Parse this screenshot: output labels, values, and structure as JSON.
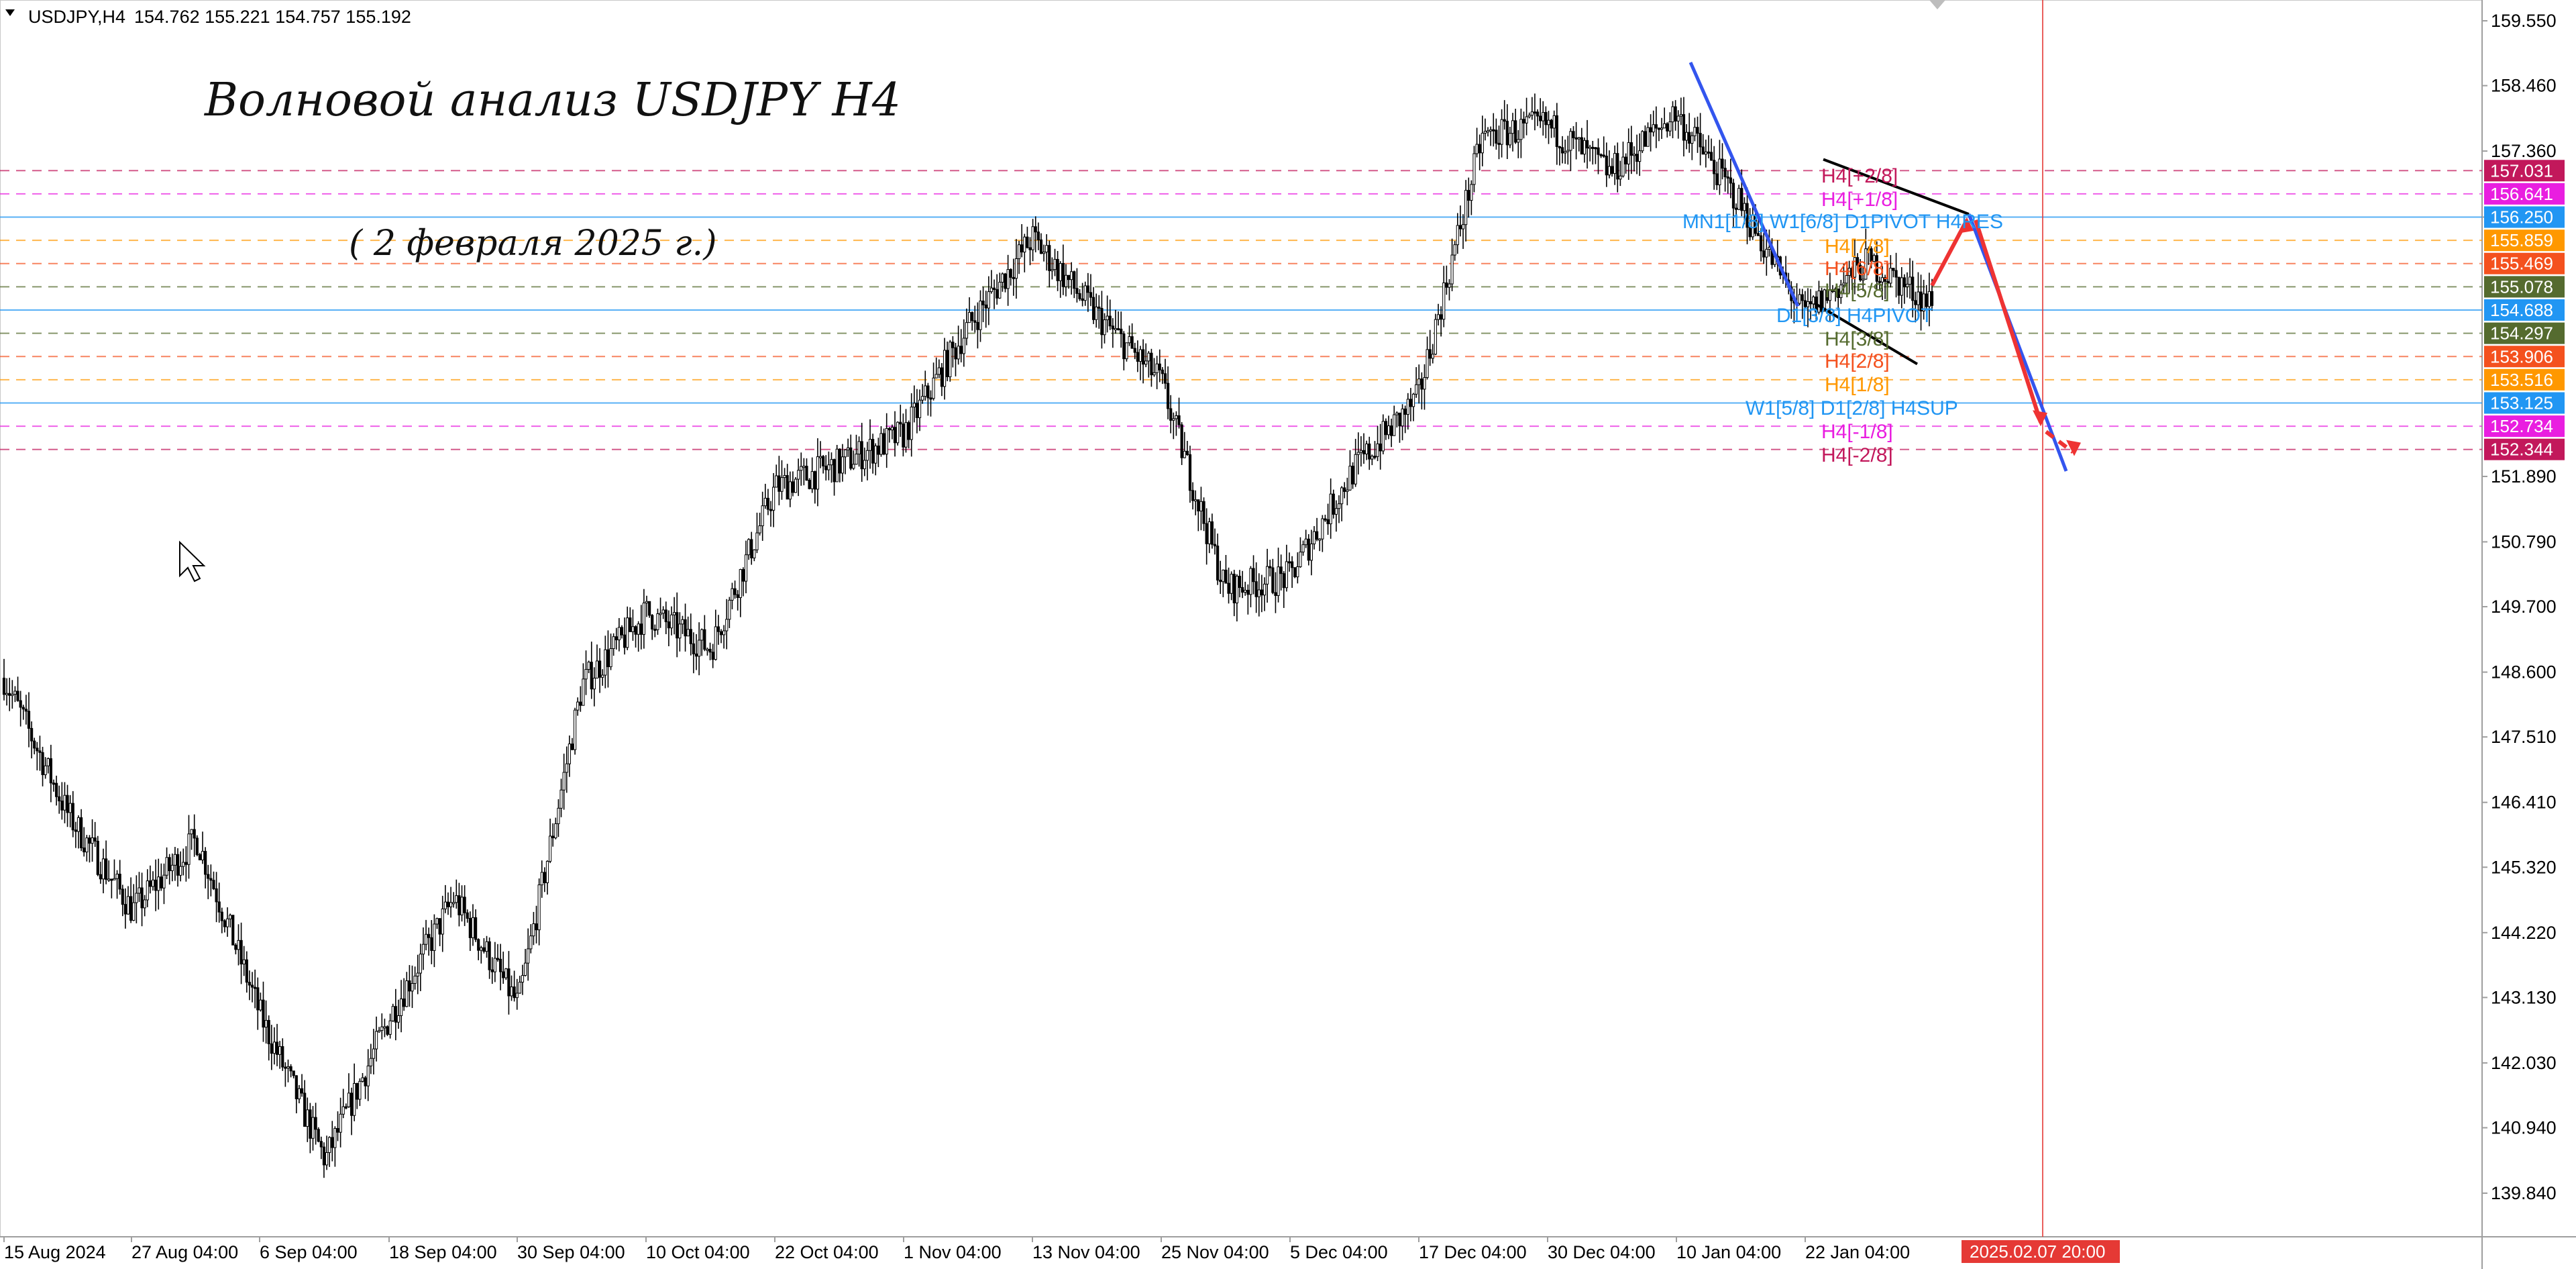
{
  "header": {
    "symbol": "USDJPY,H4",
    "ohlc": "154.762 155.221 154.757 155.192"
  },
  "annotations": {
    "title": "Волновой анализ USDJPY H4",
    "subtitle": "( 2 февраля 2025 г.)"
  },
  "colors": {
    "candle": "#000000",
    "grid_axis": "#c8c8c8",
    "level_magenta": "#e040c8",
    "level_pink": "#e8409a",
    "level_blue": "#2196f3",
    "level_orange": "#ff9800",
    "level_red_orange": "#ff5722",
    "level_olive": "#5b6b33",
    "trend_blue": "#3355ee",
    "forecast_red": "#ee3333",
    "time_marker": "#e53935"
  },
  "price_axis": {
    "labels": [
      "159.550",
      "158.460",
      "157.360",
      "156.250",
      "151.890",
      "150.790",
      "149.700",
      "148.600",
      "147.510",
      "146.410",
      "145.320",
      "144.220",
      "143.130",
      "142.030",
      "140.940",
      "139.840"
    ]
  },
  "price_tags": [
    {
      "value": "157.031",
      "color": "#c2185b"
    },
    {
      "value": "156.641",
      "color": "#e91ee0"
    },
    {
      "value": "156.250",
      "color": "#2196f3"
    },
    {
      "value": "155.859",
      "color": "#ff9800"
    },
    {
      "value": "155.469",
      "color": "#f4511e"
    },
    {
      "value": "155.078",
      "color": "#556b2f"
    },
    {
      "value": "154.688",
      "color": "#2196f3"
    },
    {
      "value": "154.297",
      "color": "#556b2f"
    },
    {
      "value": "153.906",
      "color": "#f4511e"
    },
    {
      "value": "153.516",
      "color": "#ff9800"
    },
    {
      "value": "153.125",
      "color": "#2196f3"
    },
    {
      "value": "152.734",
      "color": "#e91ee0"
    },
    {
      "value": "152.344",
      "color": "#c2185b"
    }
  ],
  "level_labels": [
    {
      "text": "H4[+2/8]",
      "color": "#c2185b"
    },
    {
      "text": "H4[+1/8]",
      "color": "#e91ee0"
    },
    {
      "text": "MN1[1/8] W1[6/8] D1PIVOT H4RES",
      "color": "#2196f3"
    },
    {
      "text": "H4[7/8]",
      "color": "#ff9800"
    },
    {
      "text": "H4[6/8]",
      "color": "#f4511e"
    },
    {
      "text": "H4[5/8]",
      "color": "#556b2f"
    },
    {
      "text": "D1[3/8] H4PIVOT",
      "color": "#2196f3"
    },
    {
      "text": "H4[3/8]",
      "color": "#556b2f"
    },
    {
      "text": "H4[2/8]",
      "color": "#f4511e"
    },
    {
      "text": "H4[1/8]",
      "color": "#ff9800"
    },
    {
      "text": "W1[5/8] D1[2/8] H4SUP",
      "color": "#2196f3"
    },
    {
      "text": "H4[-1/8]",
      "color": "#e91ee0"
    },
    {
      "text": "H4[-2/8]",
      "color": "#c2185b"
    }
  ],
  "time_axis": {
    "labels": [
      "15 Aug 2024",
      "27 Aug 04:00",
      "6 Sep 04:00",
      "18 Sep 04:00",
      "30 Sep 04:00",
      "10 Oct 04:00",
      "22 Oct 04:00",
      "1 Nov 04:00",
      "13 Nov 04:00",
      "25 Nov 04:00",
      "5 Dec 04:00",
      "17 Dec 04:00",
      "30 Dec 04:00",
      "10 Jan 04:00",
      "22 Jan 04:00"
    ],
    "marker_label": "2025.02.07 20:00"
  },
  "chart_data": {
    "type": "line",
    "title": "Волновой анализ USDJPY H4",
    "subtitle": "( 2 февраля 2025 г.)",
    "xlabel": "",
    "ylabel": "",
    "ylim": [
      139.3,
      159.9
    ],
    "grid": false,
    "x": [
      "15 Aug 2024",
      "20 Aug",
      "27 Aug 04:00",
      "1 Sep",
      "6 Sep 04:00",
      "12 Sep",
      "18 Sep 04:00",
      "24 Sep",
      "30 Sep 04:00",
      "5 Oct",
      "10 Oct 04:00",
      "16 Oct",
      "22 Oct 04:00",
      "27 Oct",
      "1 Nov 04:00",
      "7 Nov",
      "13 Nov 04:00",
      "19 Nov",
      "25 Nov 04:00",
      "30 Nov",
      "5 Dec 04:00",
      "11 Dec",
      "17 Dec 04:00",
      "23 Dec",
      "30 Dec 04:00",
      "5 Jan",
      "10 Jan 04:00",
      "16 Jan",
      "22 Jan 04:00",
      "27 Jan",
      "31 Jan"
    ],
    "series": [
      {
        "values": [
          148.5,
          146.2,
          144.6,
          145.8,
          142.8,
          140.4,
          142.8,
          144.8,
          143.0,
          148.4,
          149.6,
          149.0,
          151.7,
          152.1,
          152.6,
          154.4,
          155.9,
          154.6,
          153.5,
          150.0,
          150.2,
          152.0,
          153.2,
          157.6,
          157.8,
          157.0,
          158.0,
          156.5,
          154.6,
          155.5,
          154.8
        ]
      }
    ],
    "levels": [
      157.031,
      156.641,
      156.25,
      155.859,
      155.469,
      155.078,
      154.688,
      154.297,
      153.906,
      153.516,
      153.125,
      152.734,
      152.344
    ],
    "forecast": [
      155.1,
      156.2,
      152.8,
      152.3
    ]
  }
}
